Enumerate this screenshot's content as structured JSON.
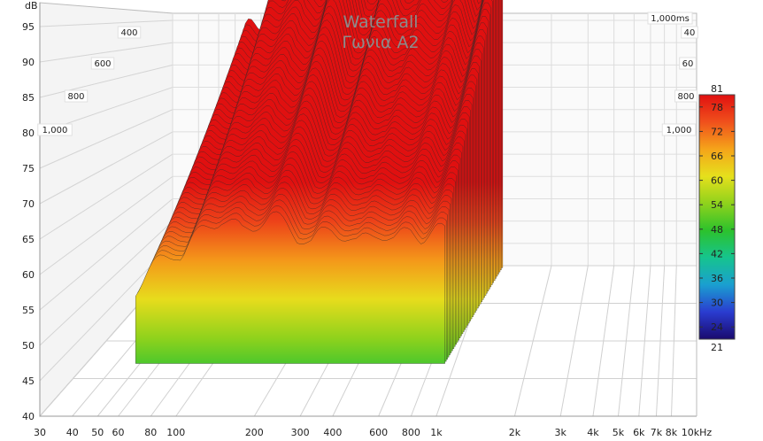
{
  "chart_data": {
    "type": "waterfall",
    "title": "Waterfall",
    "subtitle": "Γωνια Α2",
    "y_unit": "dB",
    "y_ticks": [
      40,
      45,
      50,
      55,
      60,
      65,
      70,
      75,
      80,
      85,
      90,
      95
    ],
    "x_ticks": [
      {
        "hz": 30,
        "label": "30"
      },
      {
        "hz": 40,
        "label": "40"
      },
      {
        "hz": 50,
        "label": "50"
      },
      {
        "hz": 60,
        "label": "60"
      },
      {
        "hz": 80,
        "label": "80"
      },
      {
        "hz": 100,
        "label": "100"
      },
      {
        "hz": 200,
        "label": "200"
      },
      {
        "hz": 300,
        "label": "300"
      },
      {
        "hz": 400,
        "label": "400"
      },
      {
        "hz": 600,
        "label": "600"
      },
      {
        "hz": 800,
        "label": "800"
      },
      {
        "hz": 1000,
        "label": "1k"
      },
      {
        "hz": 2000,
        "label": "2k"
      },
      {
        "hz": 3000,
        "label": "3k"
      },
      {
        "hz": 4000,
        "label": "4k"
      },
      {
        "hz": 5000,
        "label": "5k"
      },
      {
        "hz": 6000,
        "label": "6k"
      },
      {
        "hz": 7000,
        "label": "7k"
      },
      {
        "hz": 8000,
        "label": "8k"
      },
      {
        "hz": 10000,
        "label": "10kHz"
      }
    ],
    "time_labels_left": [
      "400",
      "600",
      "800",
      "1,000"
    ],
    "time_labels_right": [
      "1,000ms",
      "40",
      "60",
      "800",
      "1,000"
    ],
    "colorbar": {
      "min_label": "21",
      "max_label": "81",
      "ticks": [
        78,
        72,
        66,
        60,
        54,
        48,
        42,
        36,
        30,
        24
      ],
      "range": [
        21,
        81
      ],
      "colors": [
        "#1a0a6e",
        "#2a3cd0",
        "#1a9fd0",
        "#16c48e",
        "#2cc22c",
        "#8fd21c",
        "#e6e01c",
        "#f5a41a",
        "#f0501c",
        "#e01010"
      ]
    },
    "peaks_db": {
      "100": 80,
      "150": 93,
      "200": 90,
      "230": 94,
      "300": 86,
      "400": 89,
      "600": 88,
      "800": 88,
      "1000": 89
    }
  }
}
